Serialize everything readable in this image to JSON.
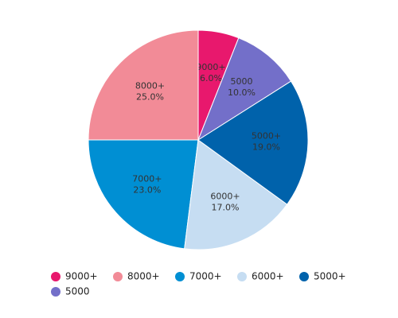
{
  "chart_data": {
    "type": "pie",
    "categories": [
      "9000+",
      "8000+",
      "7000+",
      "6000+",
      "5000+",
      "5000"
    ],
    "values": [
      6,
      25,
      23,
      17,
      19,
      10
    ],
    "value_labels": [
      "6.0%",
      "25.0%",
      "23.0%",
      "17.0%",
      "19.0%",
      "10.0%"
    ],
    "colors": [
      "#e8186d",
      "#f28b97",
      "#008fd3",
      "#c6ddf2",
      "#0062ab",
      "#736fc9"
    ],
    "legend": "bottom"
  }
}
